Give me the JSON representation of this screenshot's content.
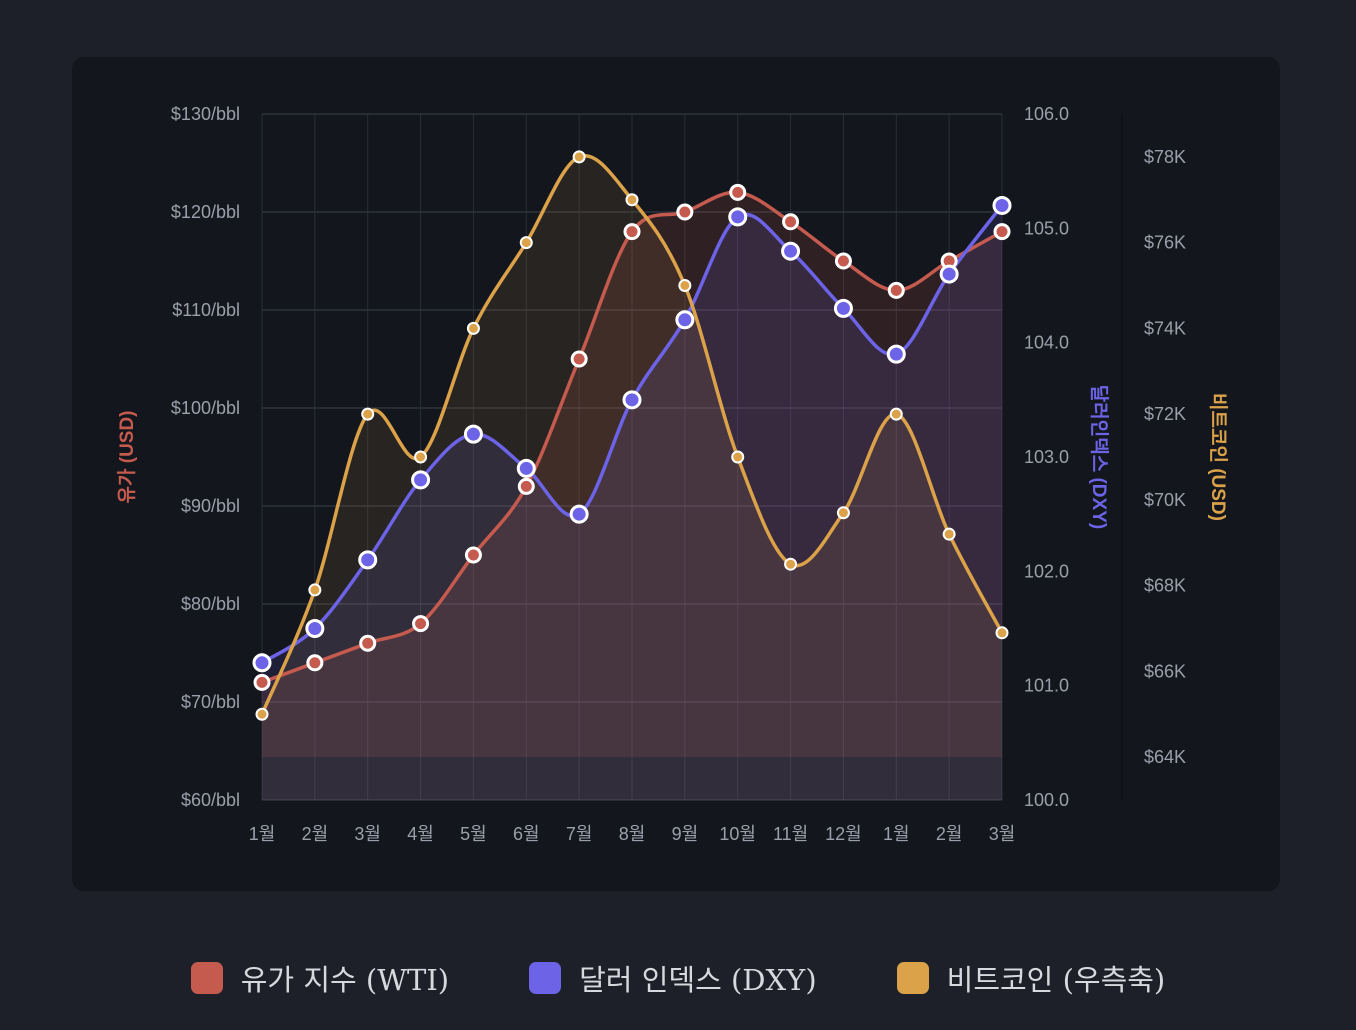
{
  "chart_data": {
    "type": "line",
    "categories": [
      "1월",
      "2월",
      "3월",
      "4월",
      "5월",
      "6월",
      "7월",
      "8월",
      "9월",
      "10월",
      "11월",
      "12월",
      "1월",
      "2월",
      "3월"
    ],
    "axes": {
      "left": {
        "label": "유가 (USD)",
        "ticks": [
          "$60/bbl",
          "$70/bbl",
          "$80/bbl",
          "$90/bbl",
          "$100/bbl",
          "$110/bbl",
          "$120/bbl",
          "$130/bbl"
        ],
        "range": [
          60,
          130
        ]
      },
      "right1": {
        "label": "달러인덱스 (DXY)",
        "ticks": [
          "100.0",
          "101.0",
          "102.0",
          "103.0",
          "104.0",
          "105.0",
          "106.0"
        ],
        "range": [
          100,
          106
        ]
      },
      "right2": {
        "label": "비트코인 (USD)",
        "ticks": [
          "$64K",
          "$66K",
          "$68K",
          "$70K",
          "$72K",
          "$74K",
          "$76K",
          "$78K"
        ],
        "range": [
          63000,
          79000
        ]
      }
    },
    "series": [
      {
        "name": "유가 지수 (WTI)",
        "axis": "left",
        "color": "#c55a4f",
        "values": [
          72,
          74,
          76,
          78,
          85,
          92,
          105,
          118,
          120,
          122,
          119,
          115,
          112,
          115,
          118
        ]
      },
      {
        "name": "달러 인덱스 (DXY)",
        "axis": "right1",
        "color": "#6c63e6",
        "values": [
          101.2,
          101.5,
          102.1,
          102.8,
          103.2,
          102.9,
          102.5,
          103.5,
          104.2,
          105.1,
          104.8,
          104.3,
          103.9,
          104.6,
          105.2
        ]
      },
      {
        "name": "비트코인 (우측축)",
        "axis": "right2",
        "color": "#dba24a",
        "values": [
          65000,
          67900,
          72000,
          71000,
          74000,
          76000,
          78000,
          77000,
          75000,
          71000,
          68500,
          69700,
          72000,
          69200,
          66900
        ]
      }
    ],
    "legend": [
      "유가 지수 (WTI)",
      "달러 인덱스 (DXY)",
      "비트코인 (우측축)"
    ]
  }
}
